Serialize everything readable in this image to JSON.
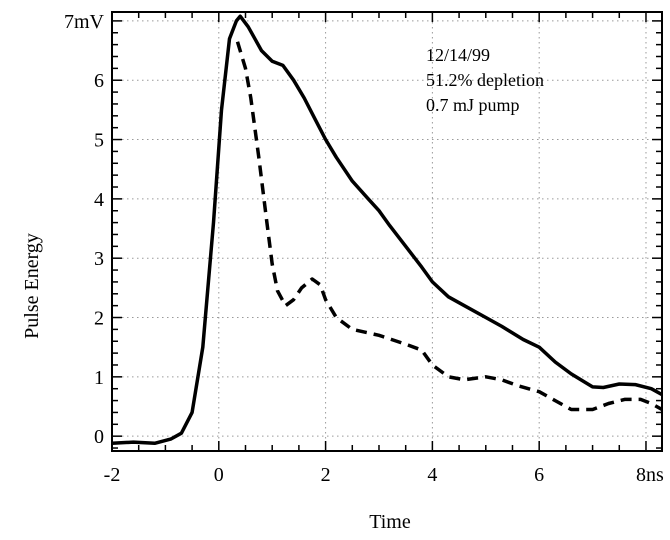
{
  "chart_data": {
    "type": "line",
    "xlabel": "Time",
    "ylabel": "Pulse Energy",
    "xlim": [
      -2,
      8.3
    ],
    "ylim": [
      -0.25,
      7.15
    ],
    "x_ticks": [
      {
        "value": -2,
        "label": "-2"
      },
      {
        "value": 0,
        "label": "0"
      },
      {
        "value": 2,
        "label": "2"
      },
      {
        "value": 4,
        "label": "4"
      },
      {
        "value": 6,
        "label": "6"
      },
      {
        "value": 8,
        "label": "8ns"
      }
    ],
    "y_ticks": [
      {
        "value": 0,
        "label": "0"
      },
      {
        "value": 1,
        "label": "1"
      },
      {
        "value": 2,
        "label": "2"
      },
      {
        "value": 3,
        "label": "3"
      },
      {
        "value": 4,
        "label": "4"
      },
      {
        "value": 5,
        "label": "5"
      },
      {
        "value": 6,
        "label": "6"
      },
      {
        "value": 7,
        "label": "7mV"
      }
    ],
    "grid": true,
    "annotations": [
      "12/14/99",
      "51.2% depletion",
      "0.7 mJ pump"
    ],
    "series": [
      {
        "style": "solid",
        "color": "#000000",
        "points": [
          [
            -2.0,
            -0.12
          ],
          [
            -1.6,
            -0.1
          ],
          [
            -1.2,
            -0.12
          ],
          [
            -0.9,
            -0.05
          ],
          [
            -0.7,
            0.05
          ],
          [
            -0.5,
            0.4
          ],
          [
            -0.3,
            1.5
          ],
          [
            -0.1,
            3.6
          ],
          [
            0.05,
            5.5
          ],
          [
            0.2,
            6.7
          ],
          [
            0.33,
            7.0
          ],
          [
            0.4,
            7.08
          ],
          [
            0.55,
            6.9
          ],
          [
            0.8,
            6.5
          ],
          [
            1.0,
            6.32
          ],
          [
            1.2,
            6.25
          ],
          [
            1.4,
            6.0
          ],
          [
            1.6,
            5.7
          ],
          [
            1.8,
            5.35
          ],
          [
            2.0,
            5.0
          ],
          [
            2.2,
            4.7
          ],
          [
            2.5,
            4.3
          ],
          [
            2.8,
            4.0
          ],
          [
            3.0,
            3.8
          ],
          [
            3.2,
            3.55
          ],
          [
            3.5,
            3.2
          ],
          [
            3.8,
            2.85
          ],
          [
            4.0,
            2.6
          ],
          [
            4.3,
            2.35
          ],
          [
            4.6,
            2.2
          ],
          [
            5.0,
            2.0
          ],
          [
            5.3,
            1.85
          ],
          [
            5.7,
            1.63
          ],
          [
            6.0,
            1.5
          ],
          [
            6.3,
            1.25
          ],
          [
            6.6,
            1.05
          ],
          [
            7.0,
            0.83
          ],
          [
            7.2,
            0.82
          ],
          [
            7.5,
            0.88
          ],
          [
            7.8,
            0.87
          ],
          [
            8.1,
            0.8
          ],
          [
            8.3,
            0.7
          ]
        ]
      },
      {
        "style": "dashed",
        "color": "#000000",
        "points": [
          [
            0.35,
            6.65
          ],
          [
            0.5,
            6.2
          ],
          [
            0.6,
            5.7
          ],
          [
            0.75,
            4.7
          ],
          [
            0.9,
            3.6
          ],
          [
            1.0,
            2.9
          ],
          [
            1.1,
            2.45
          ],
          [
            1.25,
            2.2
          ],
          [
            1.4,
            2.3
          ],
          [
            1.55,
            2.5
          ],
          [
            1.75,
            2.65
          ],
          [
            1.9,
            2.55
          ],
          [
            2.0,
            2.3
          ],
          [
            2.2,
            2.0
          ],
          [
            2.5,
            1.8
          ],
          [
            3.0,
            1.7
          ],
          [
            3.5,
            1.55
          ],
          [
            3.8,
            1.45
          ],
          [
            4.0,
            1.2
          ],
          [
            4.3,
            1.0
          ],
          [
            4.6,
            0.95
          ],
          [
            5.0,
            1.0
          ],
          [
            5.3,
            0.95
          ],
          [
            5.6,
            0.85
          ],
          [
            6.0,
            0.75
          ],
          [
            6.3,
            0.6
          ],
          [
            6.6,
            0.45
          ],
          [
            7.0,
            0.45
          ],
          [
            7.3,
            0.55
          ],
          [
            7.6,
            0.62
          ],
          [
            7.9,
            0.62
          ],
          [
            8.1,
            0.55
          ],
          [
            8.3,
            0.45
          ]
        ]
      }
    ]
  }
}
